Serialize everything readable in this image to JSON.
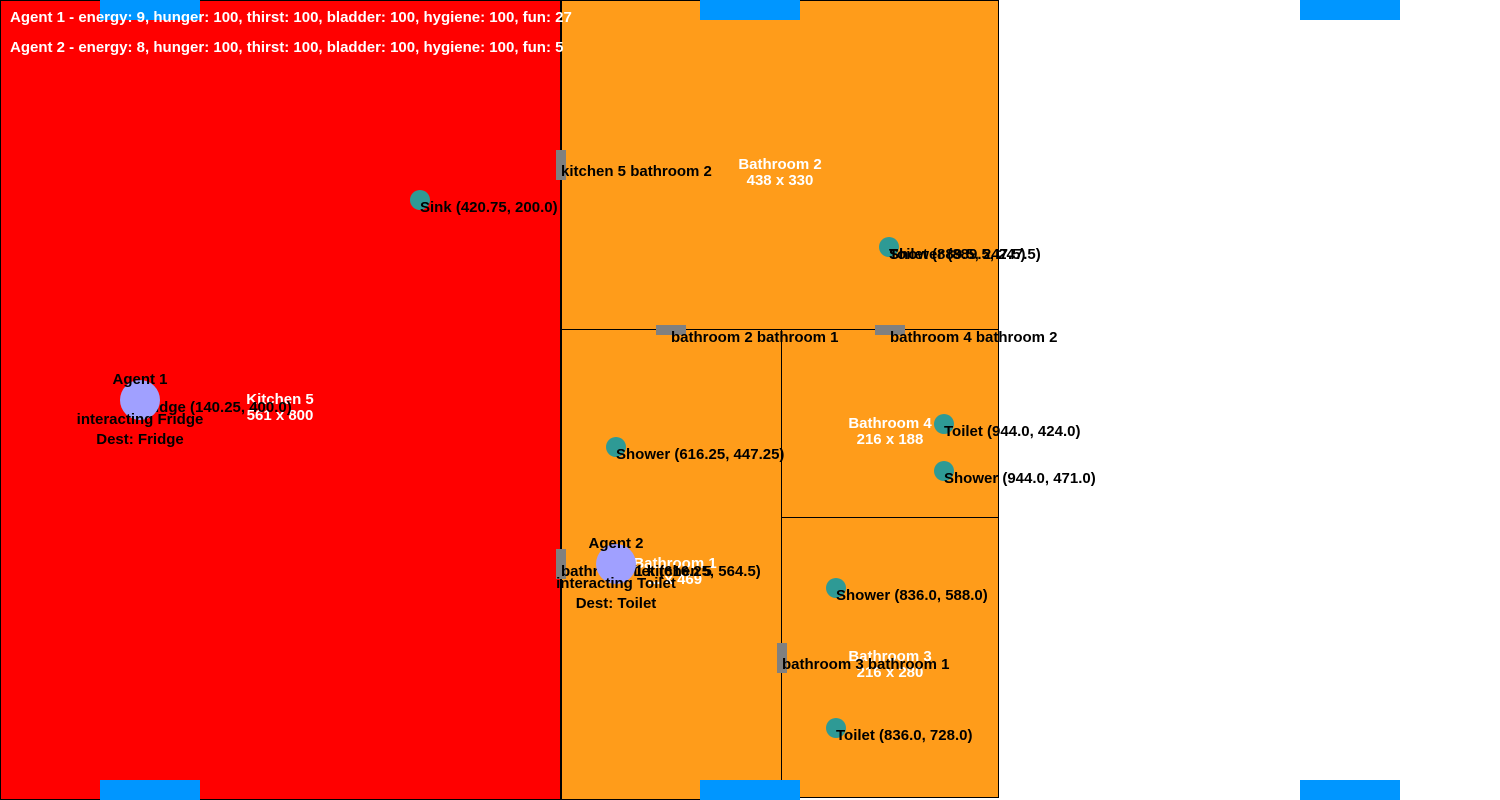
{
  "status": {
    "agent1": "Agent 1 - energy: 9, hunger: 100, thirst: 100, bladder: 100, hygiene: 100, fun: 27",
    "agent2": "Agent 2 - energy: 8, hunger: 100, thirst: 100, bladder: 100, hygiene: 100, fun: 5"
  },
  "colors": {
    "kitchen": "#ff0000",
    "bathroom": "#ff9c1a",
    "object": "#2e9a95",
    "agent": "#a0a0ff",
    "window": "#0096ff",
    "door": "#808080"
  },
  "rooms": {
    "kitchen5": {
      "name": "Kitchen 5",
      "size": "561 x 800"
    },
    "bathroom2": {
      "name": "Bathroom 2",
      "size": "438 x 330"
    },
    "bathroom1": {
      "name": "Bathroom 1",
      "size": "... x 469"
    },
    "bathroom4": {
      "name": "Bathroom 4",
      "size": "216 x 188"
    },
    "bathroom3": {
      "name": "Bathroom 3",
      "size": "216 x 280"
    }
  },
  "doors": {
    "kitchen5_bathroom2": "kitchen 5 bathroom 2",
    "bathroom2_bathroom1": "bathroom 2 bathroom 1",
    "bathroom4_bathroom2": "bathroom 4 bathroom 2",
    "bathroom3_bathroom1": "bathroom 3 bathroom 1",
    "kitchen5_bathroom1": "bathroom 1 kitchen 5"
  },
  "objects": {
    "sink": "Sink (420.75, 200.0)",
    "fridge": "Fridge (140.25, 400.0)",
    "b2_shower": "Shower (889.5, 247.5)",
    "b2_toilet": "Toilet (889.5, 247.5)",
    "b1_shower": "Shower (616.25, 447.25)",
    "b1_toilet": "Toilet (616.25, 564.5)",
    "b4_toilet": "Toilet (944.0, 424.0)",
    "b4_shower": "Shower (944.0, 471.0)",
    "b3_shower": "Shower (836.0, 588.0)",
    "b3_toilet": "Toilet (836.0, 728.0)"
  },
  "agents": {
    "agent1": {
      "name": "Agent 1",
      "activity": "interacting Fridge",
      "dest": "Dest: Fridge"
    },
    "agent2": {
      "name": "Agent 2",
      "activity": "interacting Toilet",
      "dest": "Dest: Toilet"
    }
  }
}
